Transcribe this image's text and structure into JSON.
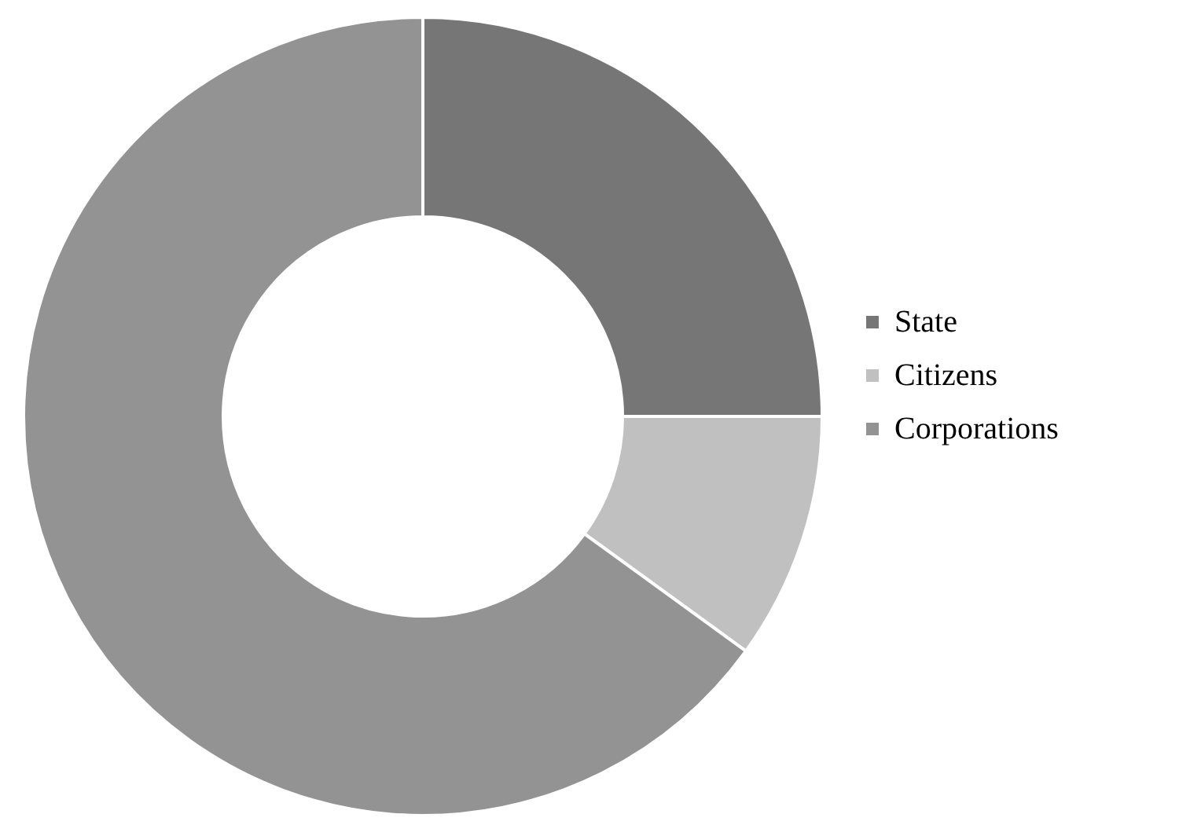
{
  "chart_data": {
    "type": "donut",
    "categories": [
      "State",
      "Citizens",
      "Corporations"
    ],
    "values": [
      25,
      10,
      65
    ],
    "colors": [
      "#767676",
      "#c0c0c0",
      "#939393"
    ],
    "legend": "right"
  }
}
